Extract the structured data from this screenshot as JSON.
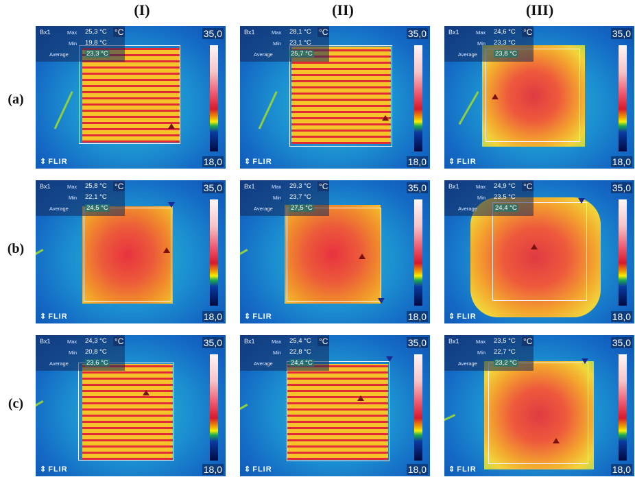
{
  "columns": [
    "(I)",
    "(II)",
    "(III)"
  ],
  "rows": [
    "(a)",
    "(b)",
    "(c)"
  ],
  "common": {
    "box_label": "Bx1",
    "max_label": "Max",
    "min_label": "Min",
    "avg_label": "Average",
    "unit": "°C",
    "scale_max": "35,0",
    "scale_min": "18,0",
    "brand": "FLIR",
    "brand_icon": "flir-logo-icon"
  },
  "panels": [
    [
      {
        "max": "25,3 °C",
        "min": "19,8 °C",
        "avg": "23,3 °C"
      },
      {
        "max": "28,1 °C",
        "min": "23,1 °C",
        "avg": "25,7 °C"
      },
      {
        "max": "24,6 °C",
        "min": "23,3 °C",
        "avg": "23,8 °C"
      }
    ],
    [
      {
        "max": "25,8 °C",
        "min": "22,1 °C",
        "avg": "24,5 °C"
      },
      {
        "max": "29,3 °C",
        "min": "23,7 °C",
        "avg": "27,5 °C"
      },
      {
        "max": "24,9 °C",
        "min": "23,5 °C",
        "avg": "24,4 °C"
      }
    ],
    [
      {
        "max": "24,3 °C",
        "min": "20,8 °C",
        "avg": "23,6 °C"
      },
      {
        "max": "25,4 °C",
        "min": "22,8 °C",
        "avg": "24,4 °C"
      },
      {
        "max": "23,5 °C",
        "min": "22,7 °C",
        "avg": "23,2 °C"
      }
    ]
  ]
}
